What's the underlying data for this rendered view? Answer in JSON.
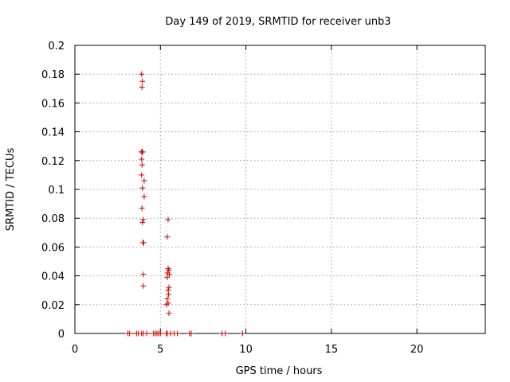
{
  "chart_data": {
    "type": "scatter",
    "title": "Day 149 of 2019, SRMTID for receiver unb3",
    "xlabel": "GPS time / hours",
    "ylabel": "SRMTID / TECUs",
    "xlim": [
      0,
      24
    ],
    "ylim": [
      0,
      0.2
    ],
    "xticks": [
      "0",
      "5",
      "10",
      "15",
      "20"
    ],
    "yticks": [
      "0",
      "0.02",
      "0.04",
      "0.06",
      "0.08",
      "0.1",
      "0.12",
      "0.14",
      "0.16",
      "0.18",
      "0.2"
    ],
    "grid": true,
    "marker": "+",
    "color": "#cc0000",
    "series": [
      {
        "points": [
          [
            3.9,
            0.18
          ],
          [
            3.95,
            0.175
          ],
          [
            3.92,
            0.171
          ],
          [
            3.88,
            0.126
          ],
          [
            3.94,
            0.126
          ],
          [
            3.97,
            0.126
          ],
          [
            3.9,
            0.121
          ],
          [
            3.93,
            0.117
          ],
          [
            3.9,
            0.11
          ],
          [
            4.05,
            0.106
          ],
          [
            3.95,
            0.101
          ],
          [
            4.05,
            0.095
          ],
          [
            3.92,
            0.087
          ],
          [
            4.0,
            0.079
          ],
          [
            3.95,
            0.077
          ],
          [
            4.02,
            0.063
          ],
          [
            3.98,
            0.063
          ],
          [
            4.0,
            0.041
          ],
          [
            4.0,
            0.033
          ],
          [
            5.45,
            0.079
          ],
          [
            5.4,
            0.067
          ],
          [
            5.45,
            0.045
          ],
          [
            5.5,
            0.044
          ],
          [
            5.42,
            0.042
          ],
          [
            5.52,
            0.041
          ],
          [
            5.4,
            0.039
          ],
          [
            5.5,
            0.032
          ],
          [
            5.45,
            0.03
          ],
          [
            5.48,
            0.027
          ],
          [
            5.4,
            0.024
          ],
          [
            5.45,
            0.021
          ],
          [
            5.35,
            0.02
          ],
          [
            5.5,
            0.014
          ],
          [
            3.1,
            0.0
          ],
          [
            3.2,
            0.0
          ],
          [
            3.6,
            0.0
          ],
          [
            3.7,
            0.0
          ],
          [
            3.9,
            0.0
          ],
          [
            4.0,
            0.0
          ],
          [
            4.2,
            0.0
          ],
          [
            4.6,
            0.0
          ],
          [
            4.7,
            0.0
          ],
          [
            4.8,
            0.0
          ],
          [
            4.9,
            0.0
          ],
          [
            5.0,
            0.0
          ],
          [
            5.35,
            0.0
          ],
          [
            5.4,
            0.0
          ],
          [
            5.6,
            0.0
          ],
          [
            5.8,
            0.0
          ],
          [
            6.0,
            0.0
          ],
          [
            6.7,
            0.0
          ],
          [
            6.8,
            0.0
          ],
          [
            8.6,
            0.0
          ],
          [
            8.8,
            0.0
          ],
          [
            9.8,
            0.0
          ]
        ]
      }
    ]
  }
}
